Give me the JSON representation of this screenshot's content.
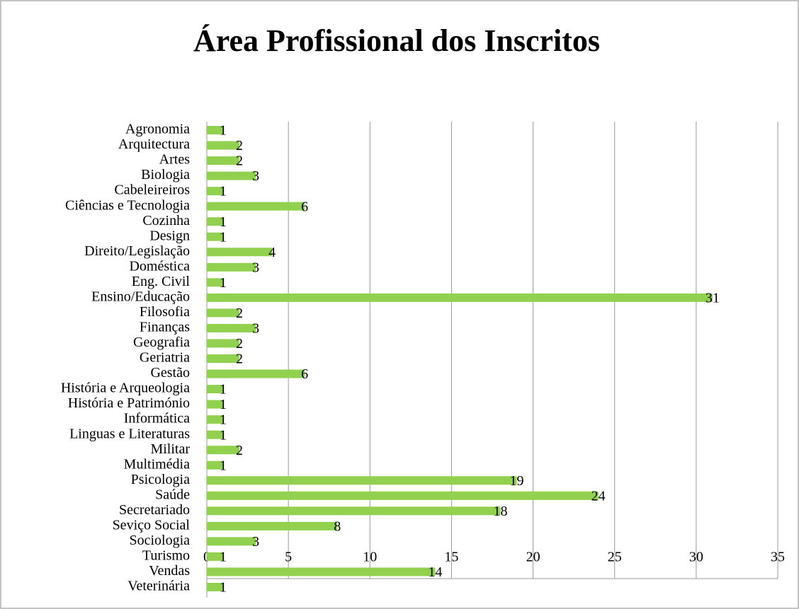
{
  "chart_data": {
    "type": "bar",
    "orientation": "horizontal",
    "title": "Área Profissional dos Inscritos",
    "categories": [
      "Agronomia",
      "Arquitectura",
      "Artes",
      "Biologia",
      "Cabeleireiros",
      "Ciências e Tecnologia",
      "Cozinha",
      "Design",
      "Direito/Legislação",
      "Doméstica",
      "Eng. Civil",
      "Ensino/Educação",
      "Filosofia",
      "Finanças",
      "Geografia",
      "Geriatria",
      "Gestão",
      "História e Arqueologia",
      "História e Património",
      "Informática",
      "Linguas e Literaturas",
      "Militar",
      "Multimédia",
      "Psicologia",
      "Saúde",
      "Secretariado",
      "Seviço Social",
      "Sociologia",
      "Turismo",
      "Vendas",
      "Veterinária"
    ],
    "values": [
      1,
      2,
      2,
      3,
      1,
      6,
      1,
      1,
      4,
      3,
      1,
      31,
      2,
      3,
      2,
      2,
      6,
      1,
      1,
      1,
      1,
      2,
      1,
      19,
      24,
      18,
      8,
      3,
      1,
      14,
      1
    ],
    "color": "#92d050",
    "xlim": [
      0,
      35
    ],
    "xticks": [
      0,
      5,
      10,
      15,
      20,
      25,
      30,
      35
    ],
    "grid": true,
    "data_labels": true
  }
}
